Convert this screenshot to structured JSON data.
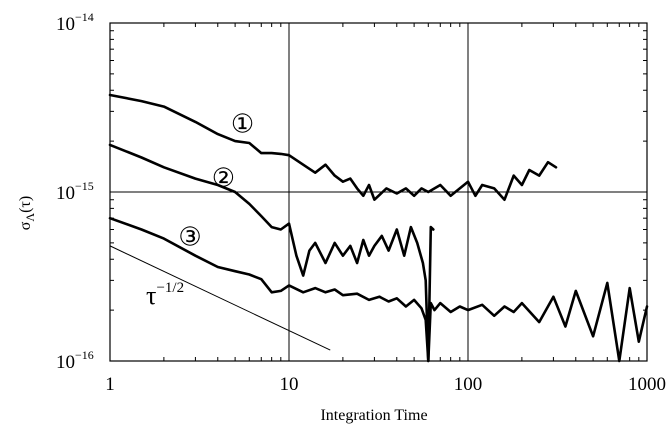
{
  "chart_data": {
    "type": "line",
    "xlabel": "Integration Time",
    "ylabel": {
      "main": "σ",
      "sub": "Λ",
      "arg": "(τ)"
    },
    "x_scale": "log",
    "y_scale": "log",
    "xlim": [
      1,
      1000
    ],
    "ylim": [
      1e-16,
      1e-14
    ],
    "x_ticks": [
      {
        "value": 1,
        "label": "1"
      },
      {
        "value": 10,
        "label": "10"
      },
      {
        "value": 100,
        "label": "100"
      },
      {
        "value": 1000,
        "label": "1000"
      }
    ],
    "y_ticks": [
      {
        "value": 1e-16,
        "base": "10",
        "exp": "−16"
      },
      {
        "value": 1e-15,
        "base": "10",
        "exp": "−15"
      },
      {
        "value": 1e-14,
        "base": "10",
        "exp": "−14"
      }
    ],
    "grid": {
      "x": [
        10,
        100
      ],
      "y": [
        1e-15
      ]
    },
    "series": [
      {
        "marker": "①",
        "x": [
          1,
          1.5,
          2,
          3,
          4,
          5,
          6,
          7,
          8,
          9,
          10,
          12,
          14,
          16,
          18,
          20,
          22,
          24,
          26,
          28,
          30,
          35,
          40,
          45,
          50,
          55,
          60,
          70,
          80,
          90,
          100,
          110,
          120,
          140,
          160,
          180,
          200,
          220,
          250,
          280,
          310
        ],
        "y": [
          3.75e-15,
          3.45e-15,
          3.2e-15,
          2.6e-15,
          2.2e-15,
          2e-15,
          1.95e-15,
          1.7e-15,
          1.7e-15,
          1.68e-15,
          1.65e-15,
          1.45e-15,
          1.3e-15,
          1.45e-15,
          1.25e-15,
          1.15e-15,
          1.2e-15,
          1.05e-15,
          9.5e-16,
          1.1e-15,
          9e-16,
          1.05e-15,
          9.8e-16,
          1.05e-15,
          9.5e-16,
          1.05e-15,
          1e-15,
          1.1e-15,
          9.5e-16,
          1.05e-15,
          1.15e-15,
          9.5e-16,
          1.1e-15,
          1.05e-15,
          9e-16,
          1.25e-15,
          1.1e-15,
          1.35e-15,
          1.25e-15,
          1.5e-15,
          1.4e-15
        ]
      },
      {
        "marker": "②",
        "x": [
          1,
          1.5,
          2,
          3,
          4,
          5,
          6,
          7,
          8,
          9,
          10,
          11,
          12,
          13,
          14,
          16,
          18,
          20,
          22,
          24,
          26,
          28,
          30,
          33,
          36,
          40,
          44,
          48,
          52,
          56,
          58,
          60,
          62,
          64
        ],
        "y": [
          1.9e-15,
          1.6e-15,
          1.4e-15,
          1.2e-15,
          1.1e-15,
          1e-15,
          8.5e-16,
          7.2e-16,
          6.2e-16,
          6e-16,
          6.5e-16,
          4.2e-16,
          3.2e-16,
          4.5e-16,
          5e-16,
          3.8e-16,
          5e-16,
          4.2e-16,
          4.8e-16,
          3.8e-16,
          5.2e-16,
          4.2e-16,
          4.8e-16,
          5.5e-16,
          4.5e-16,
          6e-16,
          4.2e-16,
          6.2e-16,
          5e-16,
          3.8e-16,
          3e-16,
          1e-16,
          6.2e-16,
          6e-16
        ]
      },
      {
        "marker": "③",
        "x": [
          1,
          1.5,
          2,
          3,
          4,
          5,
          6,
          7,
          8,
          9,
          10,
          12,
          14,
          16,
          18,
          20,
          24,
          28,
          32,
          36,
          40,
          45,
          50,
          55,
          58,
          60,
          62,
          65,
          70,
          80,
          90,
          100,
          120,
          140,
          160,
          180,
          200,
          250,
          300,
          350,
          400,
          500,
          600,
          700,
          800,
          900,
          1000
        ],
        "y": [
          7e-16,
          6e-16,
          5.3e-16,
          4.2e-16,
          3.6e-16,
          3.4e-16,
          3.25e-16,
          3.05e-16,
          2.55e-16,
          2.6e-16,
          2.8e-16,
          2.55e-16,
          2.7e-16,
          2.55e-16,
          2.65e-16,
          2.45e-16,
          2.5e-16,
          2.3e-16,
          2.4e-16,
          2.25e-16,
          2.35e-16,
          2.1e-16,
          2.3e-16,
          2.05e-16,
          1.75e-16,
          1e-16,
          2.2e-16,
          2e-16,
          2.2e-16,
          1.95e-16,
          2.1e-16,
          2e-16,
          2.15e-16,
          1.85e-16,
          2.1e-16,
          1.95e-16,
          2.2e-16,
          1.7e-16,
          2.4e-16,
          1.6e-16,
          2.6e-16,
          1.4e-16,
          2.9e-16,
          1e-16,
          2.7e-16,
          1.3e-16,
          2.1e-16
        ]
      }
    ],
    "reference_line": {
      "label": {
        "base": "τ",
        "exp": "−1/2"
      },
      "x": [
        1,
        17
      ],
      "y": [
        4.8e-16,
        1.16e-16
      ]
    },
    "colors": {
      "series": "#000000",
      "grid": "#000000",
      "background": "#ffffff"
    }
  }
}
